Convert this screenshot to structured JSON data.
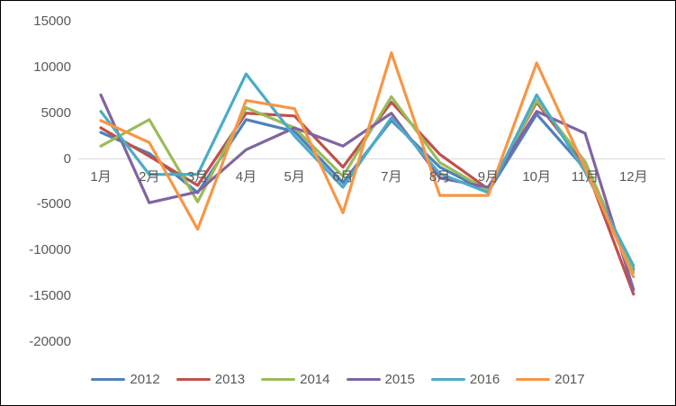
{
  "chart_data": {
    "type": "line",
    "title": "",
    "xlabel": "",
    "ylabel": "",
    "categories": [
      "1月",
      "2月",
      "3月",
      "4月",
      "5月",
      "6月",
      "7月",
      "8月",
      "9月",
      "10月",
      "11月",
      "12月"
    ],
    "series": [
      {
        "name": "2012",
        "color": "#4F81BD",
        "values": [
          2900,
          600,
          -3700,
          4300,
          3000,
          -2600,
          4200,
          -900,
          -3600,
          4900,
          -1100,
          -12100
        ]
      },
      {
        "name": "2013",
        "color": "#C0504D",
        "values": [
          3400,
          300,
          -2900,
          5000,
          4700,
          -900,
          6200,
          500,
          -3300,
          6200,
          -700,
          -14800
        ]
      },
      {
        "name": "2014",
        "color": "#9BBB59",
        "values": [
          1400,
          4300,
          -4700,
          5600,
          3400,
          -1900,
          6800,
          -400,
          -3500,
          6400,
          -300,
          -12400
        ]
      },
      {
        "name": "2015",
        "color": "#8064A2",
        "values": [
          7000,
          -4800,
          -3600,
          1000,
          3400,
          1400,
          5000,
          -2100,
          -3100,
          5200,
          2800,
          -14300
        ]
      },
      {
        "name": "2016",
        "color": "#4BACC6",
        "values": [
          5200,
          -1700,
          -1700,
          9300,
          2500,
          -3100,
          4500,
          -1600,
          -3700,
          7000,
          -1400,
          -11700
        ]
      },
      {
        "name": "2017",
        "color": "#F79646",
        "values": [
          4200,
          1800,
          -7700,
          6400,
          5500,
          -5900,
          11600,
          -4000,
          -4000,
          10500,
          -1000,
          -12900
        ]
      }
    ],
    "yticks": [
      15000,
      10000,
      5000,
      0,
      -5000,
      -10000,
      -15000,
      -20000
    ],
    "ylim": [
      -20000,
      15000
    ],
    "grid": "zero-line-only",
    "zero_line_color": "#D9D9D9",
    "axis_label_color": "#595959",
    "legend_position": "bottom",
    "line_width": 3.2
  }
}
